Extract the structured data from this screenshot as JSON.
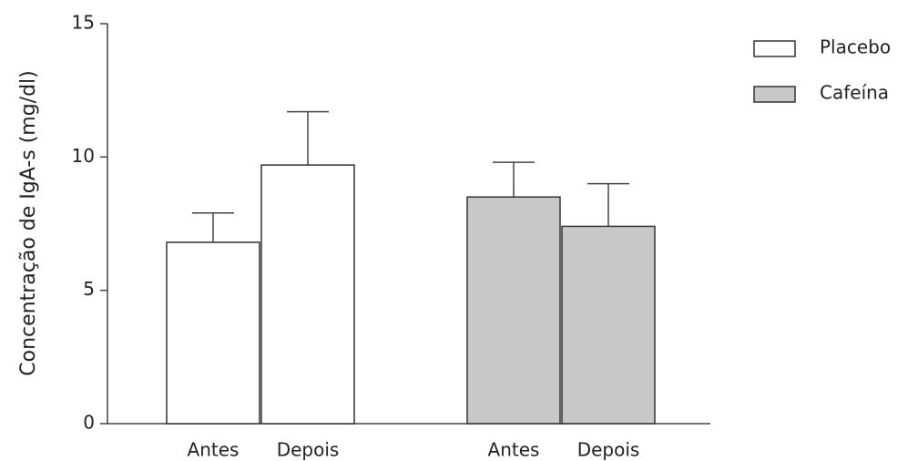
{
  "chart_data": {
    "type": "bar",
    "y_label": "Concentração de IgA-s (mg/dl)",
    "categories": [
      "Antes",
      "Depois",
      "Antes",
      "Depois"
    ],
    "series": [
      {
        "name": "Placebo",
        "color": "#ffffff",
        "values": [
          6.8,
          9.7,
          null,
          null
        ],
        "errors": [
          1.1,
          2.0,
          null,
          null
        ]
      },
      {
        "name": "Cafeína",
        "color": "#c8c8c8",
        "values": [
          null,
          null,
          8.5,
          7.4
        ],
        "errors": [
          null,
          null,
          1.3,
          1.6
        ]
      }
    ],
    "ylim": [
      0,
      15
    ],
    "yticks": [
      0,
      5,
      10,
      15
    ],
    "grid": false,
    "legend": "right"
  }
}
